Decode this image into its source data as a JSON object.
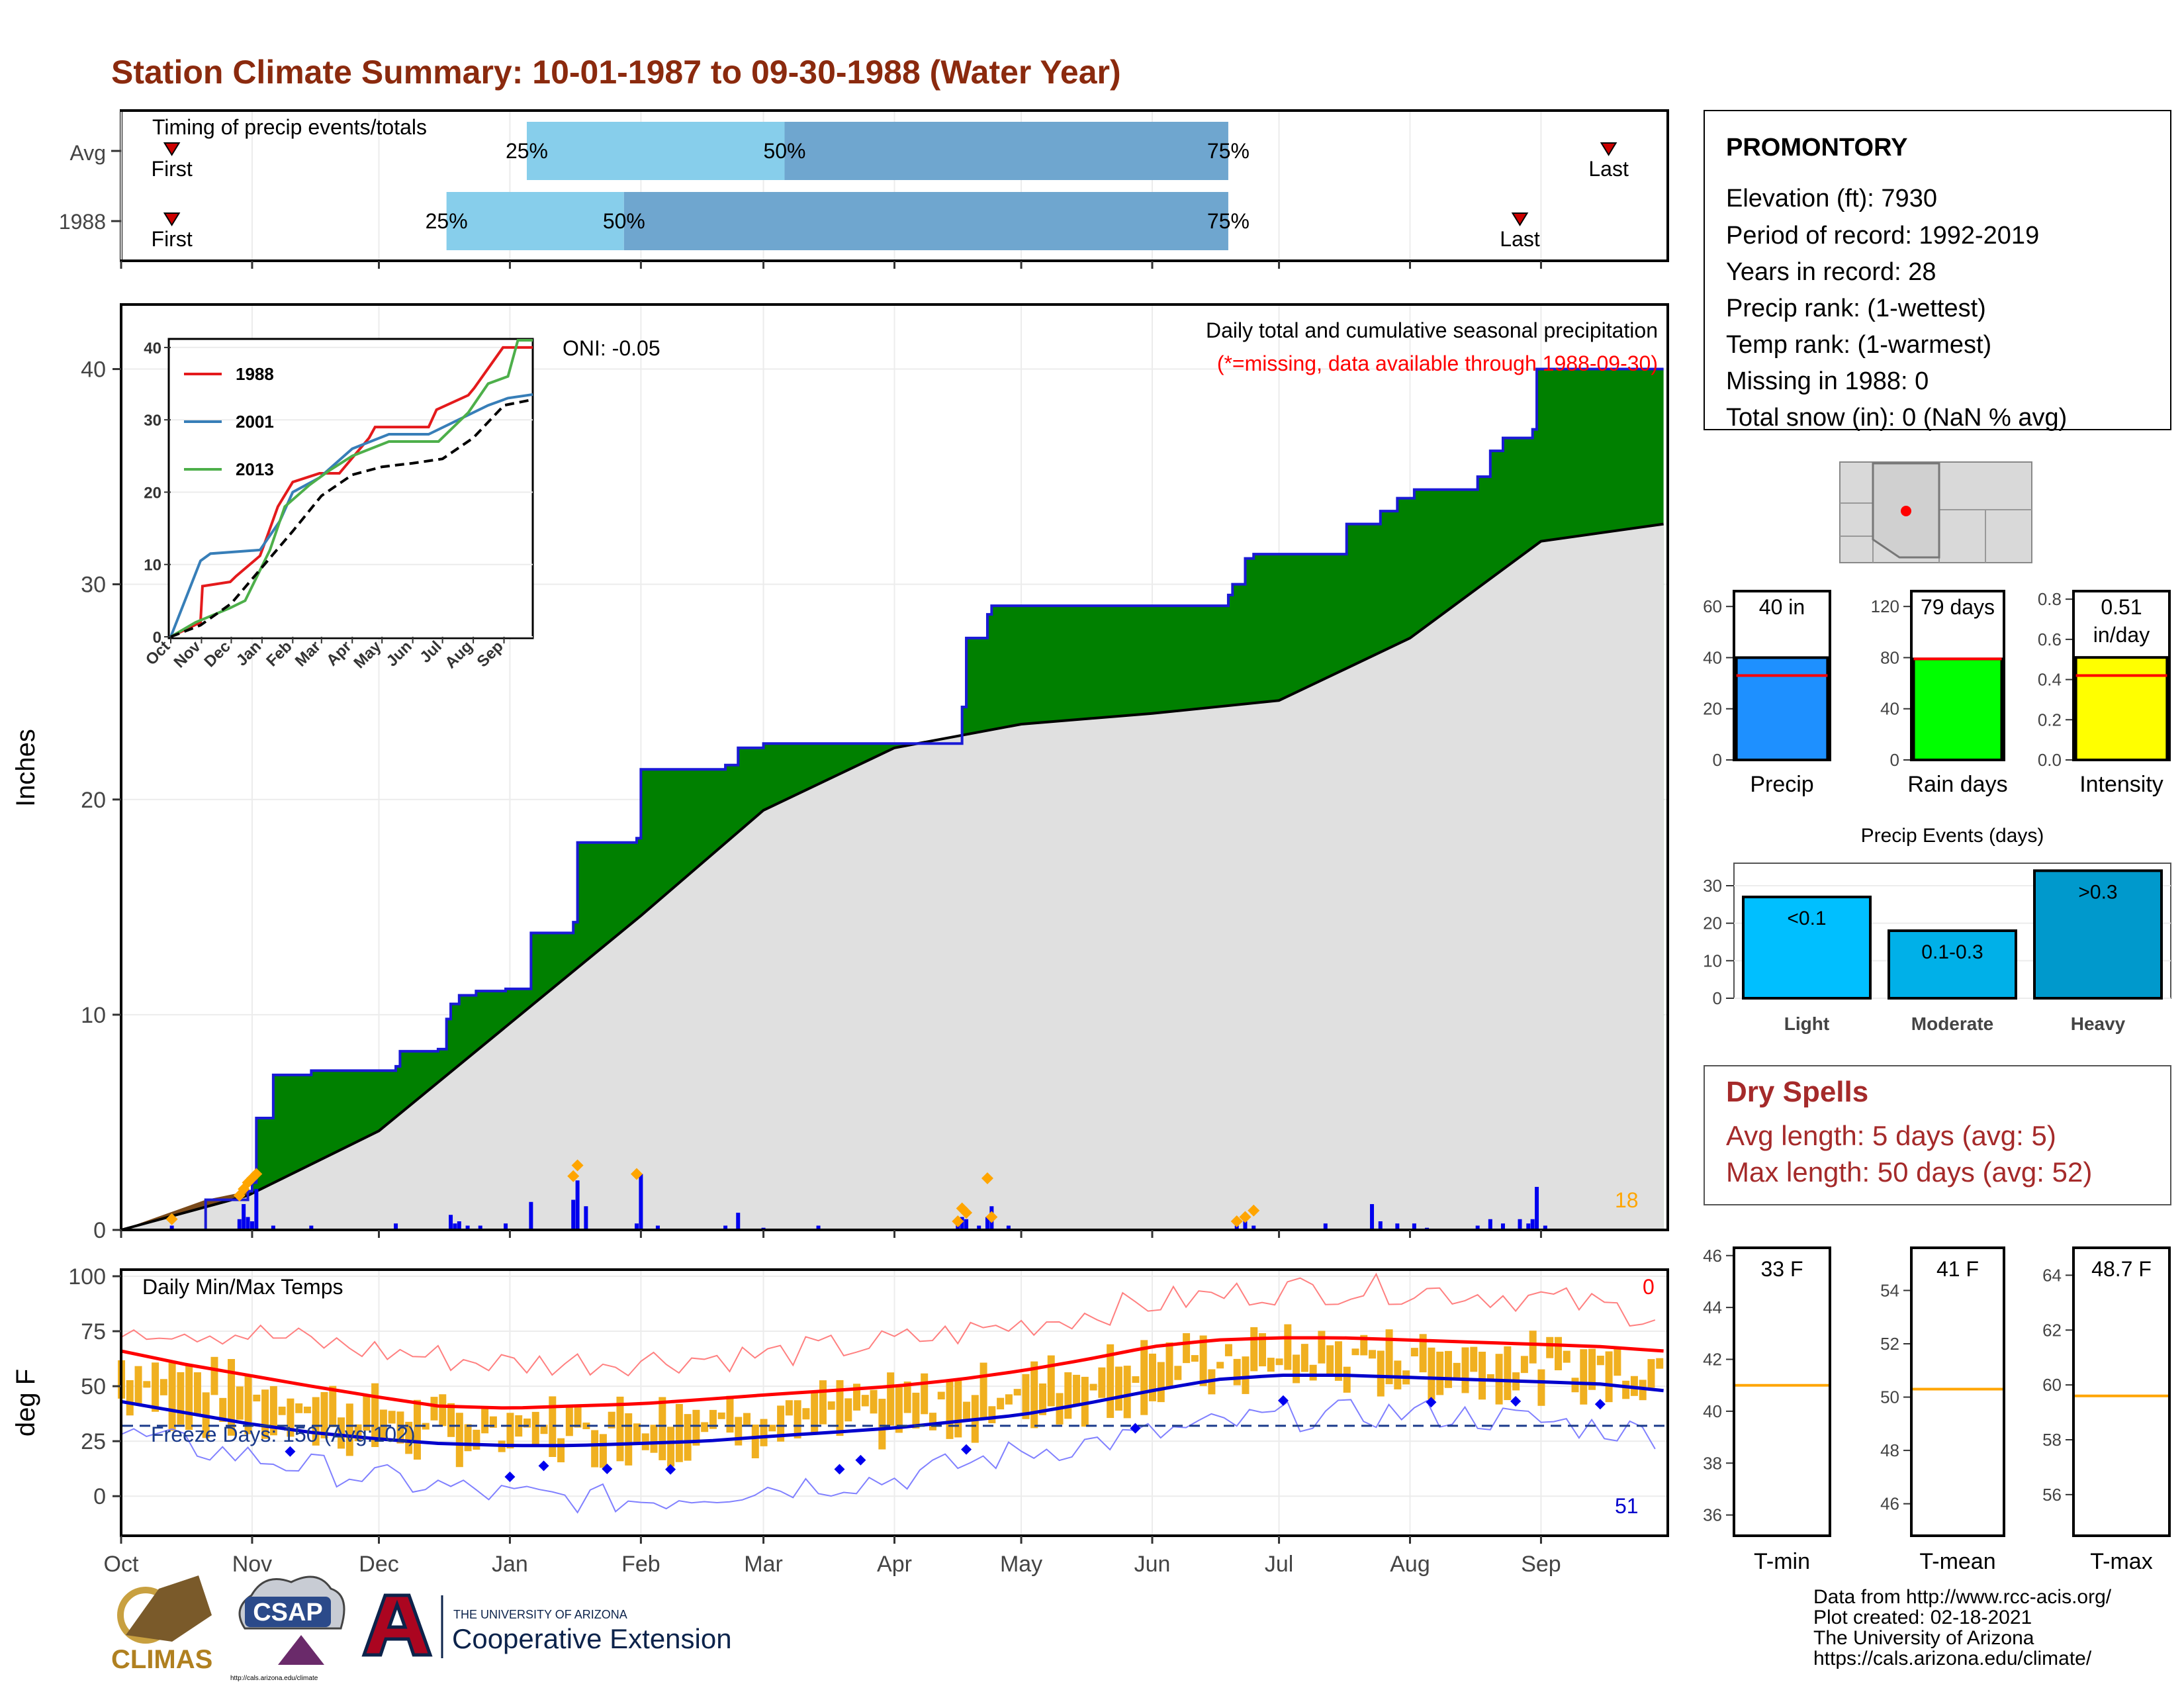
{
  "title": "Station Climate Summary: 10-01-1987 to 09-30-1988 (Water Year)",
  "colors": {
    "title": "#8B2A0E",
    "cumulative_obs": "#008000",
    "cumulative_obs_line": "#1a1ad6",
    "cumulative_avg": "#e0e0e0",
    "daily_precip": "#0000ee",
    "event_marker": "#ffa500",
    "tmax_line": "#ff0000",
    "tmin_line": "#0000cc",
    "temp_bar": "#f0b020",
    "timing_light": "#87ceeb",
    "timing_dark": "#6fa6cf",
    "dry_spells": "#a52a2a"
  },
  "timing_panel": {
    "title": "Timing of precip events/totals",
    "rows": [
      {
        "label": "Avg",
        "first_label": "First",
        "last_label": "Last",
        "first_day": 12,
        "p25_day": 96,
        "p50_day": 157,
        "p75_day": 262,
        "last_day": 352,
        "p25_label": "25%",
        "p50_label": "50%",
        "p75_label": "75%"
      },
      {
        "label": "1988",
        "first_label": "First",
        "last_label": "Last",
        "first_day": 12,
        "p25_day": 77,
        "p50_day": 119,
        "p75_day": 262,
        "last_day": 331,
        "p25_label": "25%",
        "p50_label": "50%",
        "p75_label": "75%"
      }
    ]
  },
  "months": [
    "Oct",
    "Nov",
    "Dec",
    "Jan",
    "Feb",
    "Mar",
    "Apr",
    "May",
    "Jun",
    "Jul",
    "Aug",
    "Sep"
  ],
  "month_start_days": [
    0,
    31,
    61,
    92,
    123,
    152,
    183,
    213,
    244,
    274,
    305,
    336
  ],
  "precip_panel": {
    "ylabel": "Inches",
    "oni_label": "ONI: -0.05",
    "caption": "Daily total and cumulative seasonal precipitation",
    "missing_note": "(*=missing, data available through 1988-09-30)",
    "corner_count": "18",
    "yticks": [
      0,
      10,
      20,
      30,
      40
    ],
    "ylim": [
      0,
      43
    ],
    "xlim": [
      0,
      366
    ]
  },
  "chart_data": [
    {
      "type": "area",
      "id": "cumulative_precip",
      "x_unit": "day of water year",
      "series": [
        {
          "name": "1988",
          "x": [
            0,
            20,
            30,
            31,
            32,
            36,
            45,
            65,
            66,
            75,
            77,
            78,
            80,
            84,
            91,
            97,
            107,
            108,
            115,
            122,
            123,
            143,
            146,
            152,
            153,
            170,
            196,
            199,
            200,
            205,
            206,
            222,
            232,
            240,
            262,
            263,
            266,
            268,
            285,
            290,
            298,
            302,
            306,
            308,
            309,
            314,
            321,
            324,
            327,
            334,
            335,
            365
          ],
          "y": [
            0,
            1.4,
            1.8,
            2.2,
            5.2,
            7.2,
            7.4,
            7.6,
            8.3,
            8.4,
            9.8,
            10.5,
            10.9,
            11.1,
            11.2,
            13.8,
            14.3,
            18.0,
            18.0,
            18.2,
            21.4,
            21.6,
            22.4,
            22.6,
            22.6,
            22.6,
            22.6,
            24.3,
            27.5,
            28.6,
            29.0,
            29.0,
            29.0,
            29.0,
            29.5,
            30.0,
            31.2,
            31.4,
            31.4,
            32.8,
            33.4,
            34.0,
            34.4,
            34.4,
            34.4,
            34.4,
            35.0,
            36.2,
            36.8,
            37.2,
            40.0,
            40.0
          ]
        },
        {
          "name": "Avg",
          "x": [
            0,
            30,
            61,
            92,
            123,
            152,
            183,
            213,
            244,
            274,
            305,
            336,
            365
          ],
          "y": [
            0,
            1.6,
            4.6,
            9.6,
            14.6,
            19.5,
            22.4,
            23.5,
            24.0,
            24.6,
            27.5,
            32.0,
            32.8
          ]
        }
      ]
    },
    {
      "type": "bar",
      "id": "daily_precip",
      "x_unit": "day of water year",
      "x": [
        12,
        28,
        29,
        30,
        31,
        32,
        36,
        45,
        65,
        78,
        79,
        80,
        82,
        85,
        91,
        97,
        107,
        108,
        110,
        122,
        123,
        127,
        143,
        146,
        152,
        165,
        198,
        199,
        200,
        203,
        205,
        206,
        210,
        264,
        266,
        268,
        285,
        296,
        298,
        302,
        306,
        309,
        321,
        324,
        327,
        331,
        333,
        334,
        335,
        337
      ],
      "values": [
        0.2,
        0.5,
        1.2,
        0.6,
        0.4,
        1.9,
        0.2,
        0.2,
        0.3,
        0.7,
        0.3,
        0.4,
        0.2,
        0.2,
        0.3,
        1.3,
        1.4,
        2.3,
        1.1,
        0.3,
        2.6,
        0.2,
        0.2,
        0.8,
        0.1,
        0.2,
        0.3,
        0.6,
        0.5,
        0.2,
        0.6,
        1.1,
        0.2,
        0.2,
        0.4,
        0.2,
        0.3,
        1.2,
        0.4,
        0.3,
        0.3,
        0.1,
        0.2,
        0.5,
        0.3,
        0.5,
        0.3,
        0.5,
        2.0,
        0.2
      ],
      "event_markers_x": [
        12,
        28,
        29,
        30,
        31,
        32,
        107,
        108,
        122,
        198,
        199,
        200,
        205,
        206,
        264,
        266,
        268
      ],
      "event_markers_y": [
        0.5,
        1.6,
        1.9,
        2.2,
        2.4,
        2.6,
        2.5,
        3.0,
        2.6,
        0.4,
        1.0,
        0.8,
        2.4,
        0.6,
        0.4,
        0.6,
        0.9
      ]
    },
    {
      "type": "line",
      "id": "inset_cumulative",
      "x_unit": "day of water year",
      "yticks": [
        0,
        10,
        20,
        30,
        40
      ],
      "ylim": [
        0,
        41
      ],
      "month_ticks": [
        "Oct",
        "Nov",
        "Dec",
        "Jan",
        "Feb",
        "Mar",
        "Apr",
        "May",
        "Jun",
        "Jul",
        "Aug",
        "Sep"
      ],
      "series": [
        {
          "name": "1988",
          "x": [
            0,
            30,
            32,
            60,
            66,
            90,
            97,
            108,
            123,
            150,
            170,
            200,
            206,
            260,
            268,
            300,
            306,
            335,
            365
          ],
          "y": [
            0,
            2,
            7,
            7.6,
            8.4,
            11.2,
            13.8,
            18,
            21.4,
            22.6,
            22.6,
            27.5,
            29,
            29,
            31.4,
            33.4,
            34.4,
            40,
            40
          ]
        },
        {
          "name": "2001",
          "x": [
            0,
            20,
            30,
            40,
            90,
            110,
            123,
            150,
            183,
            220,
            260,
            290,
            320,
            340,
            365
          ],
          "y": [
            0,
            7,
            10.5,
            11.5,
            12,
            16,
            20,
            22,
            26,
            28,
            28,
            30,
            32,
            33,
            33.5
          ]
        },
        {
          "name": "2013",
          "x": [
            0,
            25,
            60,
            75,
            100,
            115,
            140,
            160,
            183,
            220,
            270,
            300,
            320,
            340,
            350,
            365
          ],
          "y": [
            0,
            2,
            4,
            5,
            12,
            18,
            21,
            23,
            25,
            27,
            27,
            31,
            35,
            36,
            41,
            41
          ]
        },
        {
          "name": "Avg",
          "x": [
            0,
            30,
            61,
            92,
            123,
            152,
            183,
            213,
            244,
            274,
            305,
            336,
            365
          ],
          "y": [
            0,
            1.6,
            4.6,
            9.6,
            14.6,
            19.5,
            22.4,
            23.5,
            24.0,
            24.6,
            27.5,
            32.0,
            32.8
          ]
        }
      ]
    },
    {
      "type": "line",
      "id": "daily_temps",
      "title": "Daily Min/Max Temps",
      "ylabel": "deg F",
      "yticks": [
        0,
        25,
        50,
        75,
        100
      ],
      "ylim": [
        -18,
        103
      ],
      "freeze_label": "Freeze Days: 150 (Avg:102)",
      "freeze_line": 32,
      "corner_high": "0",
      "corner_low": "51",
      "series": [
        {
          "name": "Avg max",
          "x": [
            0,
            15,
            30,
            45,
            61,
            75,
            92,
            107,
            123,
            138,
            152,
            168,
            183,
            198,
            213,
            228,
            244,
            259,
            274,
            289,
            305,
            320,
            336,
            350,
            365
          ],
          "y": [
            66,
            60,
            55,
            50,
            45,
            41,
            40,
            41,
            42,
            44,
            46,
            48,
            50,
            53,
            57,
            62,
            68,
            71,
            72,
            72,
            71,
            70,
            69,
            68,
            66
          ]
        },
        {
          "name": "Avg min",
          "x": [
            0,
            15,
            30,
            45,
            61,
            75,
            92,
            107,
            123,
            138,
            152,
            168,
            183,
            198,
            213,
            228,
            244,
            259,
            274,
            289,
            305,
            320,
            336,
            350,
            365
          ],
          "y": [
            43,
            38,
            33,
            29,
            26,
            24,
            23,
            23,
            24,
            25,
            27,
            29,
            31,
            34,
            37,
            42,
            48,
            53,
            55,
            55,
            54,
            53,
            52,
            51,
            48
          ]
        },
        {
          "name": "Record max",
          "x": [
            0,
            30,
            61,
            92,
            123,
            152,
            183,
            213,
            244,
            274,
            305,
            336,
            365
          ],
          "y": [
            78,
            74,
            66,
            60,
            62,
            64,
            70,
            78,
            88,
            94,
            94,
            90,
            82
          ]
        },
        {
          "name": "Record min",
          "x": [
            0,
            30,
            61,
            92,
            123,
            152,
            183,
            213,
            244,
            274,
            305,
            336,
            365
          ],
          "y": [
            28,
            18,
            8,
            0,
            -2,
            4,
            8,
            20,
            28,
            36,
            38,
            34,
            28
          ]
        }
      ]
    },
    {
      "type": "bar",
      "id": "season_totals",
      "categories": [
        "Precip",
        "Rain days",
        "Intensity"
      ],
      "values": [
        40,
        79,
        0.51
      ],
      "value_labels": [
        "40 in",
        "79 days",
        "0.51 in/day"
      ],
      "averages": [
        33,
        79,
        0.42
      ],
      "yticks": [
        [
          0,
          20,
          40,
          60
        ],
        [
          0,
          40,
          80,
          120
        ],
        [
          0.0,
          0.2,
          0.4,
          0.6,
          0.8
        ]
      ]
    },
    {
      "type": "bar",
      "id": "precip_events",
      "title": "Precip Events (days)",
      "categories": [
        "Light",
        "Moderate",
        "Heavy"
      ],
      "values": [
        27,
        18,
        34
      ],
      "bar_labels": [
        "<0.1",
        "0.1-0.3",
        ">0.3"
      ],
      "yticks": [
        0,
        10,
        20,
        30
      ],
      "ylim": [
        0,
        36
      ]
    },
    {
      "type": "bar",
      "id": "seasonal_temps",
      "categories": [
        "T-min",
        "T-mean",
        "T-max"
      ],
      "values": [
        33,
        41,
        48.7
      ],
      "value_labels": [
        "33 F",
        "41 F",
        "48.7 F"
      ],
      "averages": [
        41,
        50.3,
        59.6
      ],
      "yticks": [
        [
          36,
          38,
          40,
          42,
          44,
          46
        ],
        [
          46,
          48,
          50,
          52,
          54
        ],
        [
          56,
          58,
          60,
          62,
          64
        ]
      ],
      "ylims": [
        [
          35.2,
          46.3
        ],
        [
          44.8,
          55.6
        ],
        [
          54.5,
          65.0
        ]
      ]
    }
  ],
  "station_box": {
    "name": "PROMONTORY",
    "lines": [
      "Elevation (ft): 7930",
      "Period of record: 1992-2019",
      "Years in record: 28",
      "Precip rank:  (1-wettest)",
      "Temp rank:  (1-warmest)",
      "Missing in 1988: 0",
      "Total snow (in): 0 (NaN % avg)"
    ]
  },
  "dry_spells": {
    "title": "Dry Spells",
    "avg_line": "Avg length: 5 days (avg: 5)",
    "max_line": "Max length: 50 days (avg: 52)"
  },
  "footer": {
    "lines": [
      "Data from http://www.rcc-acis.org/",
      "Plot created: 02-18-2021",
      "The University of Arizona",
      "https://cals.arizona.edu/climate/"
    ]
  },
  "logos": {
    "climas": "CLIMAS",
    "csap": "CSAP",
    "csap_url": "http://cals.arizona.edu/climate",
    "ua_small": "THE UNIVERSITY OF ARIZONA",
    "ua_big": "Cooperative Extension"
  }
}
